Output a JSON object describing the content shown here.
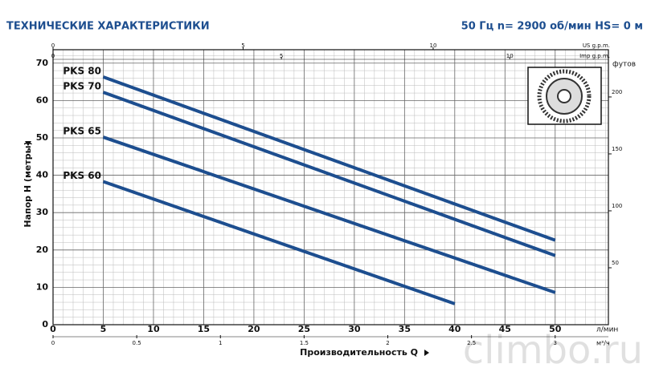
{
  "chart_data": {
    "type": "line",
    "title": "ТЕХНИЧЕСКИЕ ХАРАКТЕРИСТИКИ",
    "subtitle": "50 Гц n= 2900 об/мин HS= 0 м",
    "x_label": "Производительность Q",
    "y_label": "Напор H (метры)",
    "x_unit": "л/мин",
    "xlim": [
      0,
      55.3
    ],
    "xticks": [
      0,
      5,
      10,
      15,
      20,
      25,
      30,
      35,
      40,
      45,
      50
    ],
    "ylim": [
      0,
      73.6
    ],
    "yticks": [
      0,
      10,
      20,
      30,
      40,
      50,
      60,
      70
    ],
    "grid": true,
    "x_m3h": {
      "unit": "м³/ч",
      "lim": [
        0,
        3.318
      ],
      "ticks": [
        0,
        0.5,
        1,
        1.5,
        2,
        2.5,
        3
      ]
    },
    "x_us_gpm": {
      "unit": "US g.p.m.",
      "lim": [
        0,
        14.61
      ],
      "ticks": [
        0,
        5,
        10
      ]
    },
    "x_imp_gpm": {
      "unit": "Imp g.p.m.",
      "lim": [
        0,
        12.16
      ],
      "ticks": [
        0,
        5,
        10
      ]
    },
    "y_feet": {
      "unit": "футов",
      "lim": [
        0,
        241.5
      ],
      "ticks": [
        50,
        100,
        150,
        200
      ]
    },
    "series": [
      {
        "name": "PKS 80",
        "color": "#1d4e8f",
        "x": [
          5,
          50
        ],
        "values": [
          66.3,
          22.6
        ]
      },
      {
        "name": "PKS 70",
        "color": "#1d4e8f",
        "x": [
          5,
          50
        ],
        "values": [
          62.2,
          18.5
        ]
      },
      {
        "name": "PKS 65",
        "color": "#1d4e8f",
        "x": [
          5,
          50
        ],
        "values": [
          50.2,
          8.6
        ]
      },
      {
        "name": "PKS 60",
        "color": "#1d4e8f",
        "x": [
          5,
          40
        ],
        "values": [
          38.3,
          5.6
        ]
      }
    ],
    "watermark": "climbo.ru"
  }
}
